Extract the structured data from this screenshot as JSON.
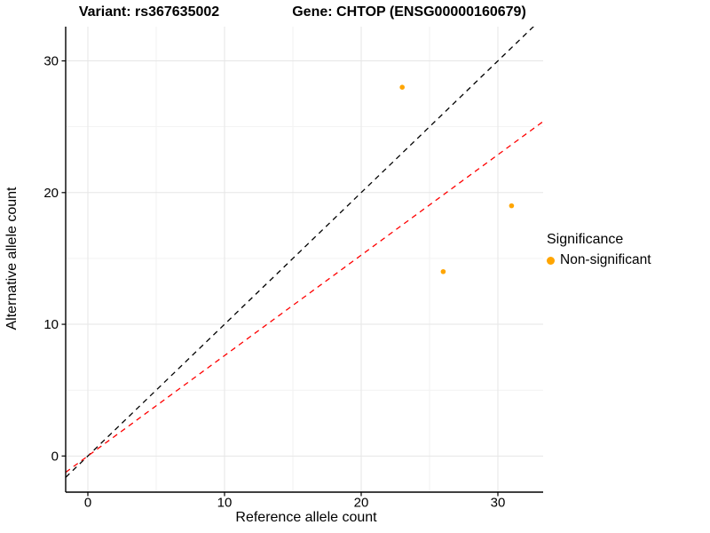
{
  "title": {
    "variant": "Variant: rs367635002",
    "gene": "Gene: CHTOP (ENSG00000160679)"
  },
  "legend": {
    "title": "Significance",
    "items": [
      {
        "label": "Non-significant",
        "color": "#FFA500"
      }
    ]
  },
  "colors": {
    "point": "#FFA500",
    "identity_line": "#000000",
    "ratio_line": "#FF0000",
    "grid_major": "#E6E6E6",
    "grid_minor": "#F2F2F2",
    "axis": "#000000",
    "text": "#000000",
    "background": "#FFFFFF"
  },
  "chart_data": {
    "type": "scatter",
    "title": "Variant: rs367635002 | Gene: CHTOP (ENSG00000160679)",
    "xlabel": "Reference allele count",
    "ylabel": "Alternative allele count",
    "series": [
      {
        "name": "Non-significant",
        "color": "#FFA500",
        "points": [
          {
            "x": 23,
            "y": 28
          },
          {
            "x": 31,
            "y": 19
          },
          {
            "x": 26,
            "y": 14
          }
        ]
      }
    ],
    "lines": [
      {
        "name": "identity",
        "slope": 1.0,
        "intercept": 0,
        "color": "#000000",
        "style": "dashed"
      },
      {
        "name": "expected-ratio",
        "slope": 0.7625,
        "intercept": 0,
        "color": "#FF0000",
        "style": "dashed"
      }
    ],
    "xlim": [
      -1.623,
      33.312
    ],
    "ylim": [
      -2.744,
      32.6
    ],
    "xticks": [
      0,
      10,
      20,
      30
    ],
    "yticks": [
      0,
      10,
      20,
      30
    ],
    "minor_xticks": [
      5,
      15,
      25
    ],
    "minor_yticks": [
      5,
      15,
      25
    ],
    "grid": true,
    "legend_position": "right"
  }
}
